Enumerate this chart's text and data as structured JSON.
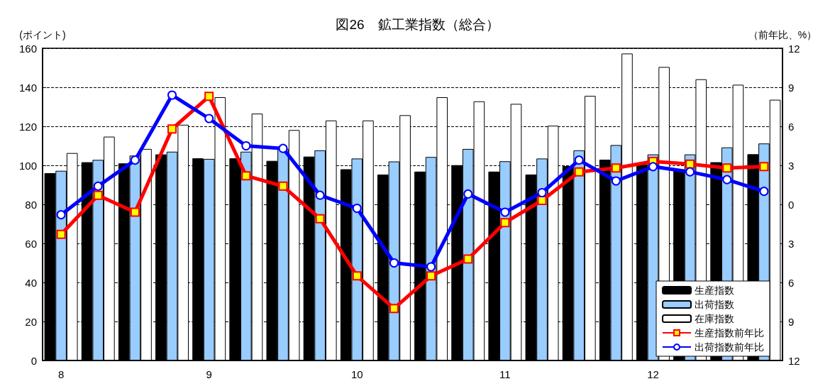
{
  "chart_data": {
    "type": "bar",
    "title": "図26　鉱工業指数（総合）",
    "ylabel": "(ポイント)",
    "y2label": "（前年比、%）",
    "categories": [
      "8",
      null,
      null,
      null,
      "9",
      null,
      null,
      null,
      "10",
      null,
      null,
      null,
      "11",
      null,
      null,
      null,
      "12",
      null,
      null,
      null
    ],
    "series": [
      {
        "name": "生産指数",
        "color": "#000000",
        "values": [
          96,
          101.6,
          101,
          105.6,
          103.6,
          103.6,
          102.3,
          104.5,
          98,
          95.3,
          96.8,
          100.1,
          96.8,
          95.3,
          99.6,
          102.9,
          100.5,
          97.9,
          101.6,
          105.7
        ]
      },
      {
        "name": "出荷指数",
        "color": "#99ccff",
        "values": [
          97.2,
          102.8,
          105,
          107,
          103.3,
          107,
          108.5,
          107.7,
          103.5,
          102,
          104.3,
          108.4,
          102.1,
          103.5,
          107.7,
          110.4,
          105.6,
          105.6,
          109.2,
          111.2
        ]
      },
      {
        "name": "在庫指数",
        "color": "#ffffff",
        "values": [
          106.3,
          114.7,
          108.4,
          120.8,
          134.9,
          126.5,
          118.1,
          123,
          123,
          125.7,
          134.9,
          132.8,
          131.5,
          120.3,
          135.6,
          157.3,
          150.4,
          144.1,
          141.3,
          133.6
        ]
      },
      {
        "name": "生産指数前年比",
        "type": "line",
        "axis": "y2",
        "color": "#ff0000",
        "marker": "square",
        "values": [
          -2.3,
          0.7,
          -0.6,
          5.8,
          8.3,
          2.2,
          1.4,
          -1.1,
          -5.5,
          -8,
          -5.5,
          -4.2,
          -1.4,
          0.3,
          2.5,
          2.8,
          3.3,
          3.1,
          2.8,
          2.9
        ]
      },
      {
        "name": "出荷指数前年比",
        "type": "line",
        "axis": "y2",
        "color": "#0000ff",
        "marker": "circle",
        "values": [
          -0.8,
          1.4,
          3.4,
          8.4,
          6.6,
          4.5,
          4.3,
          0.7,
          -0.3,
          -4.5,
          -4.8,
          0.8,
          -0.6,
          0.9,
          3.4,
          1.8,
          2.9,
          2.5,
          1.9,
          1
        ]
      }
    ],
    "ylim": [
      0,
      160
    ],
    "yticks": [
      0,
      20,
      40,
      60,
      80,
      100,
      120,
      140,
      160
    ],
    "y2lim": [
      -12,
      12
    ],
    "y2ticks": [
      {
        "value": -12,
        "label": "12"
      },
      {
        "value": -9,
        "label": "9"
      },
      {
        "value": -6,
        "label": "6"
      },
      {
        "value": -3,
        "label": "3"
      },
      0,
      3,
      6,
      9,
      12
    ],
    "grid": "y",
    "legend": "bottom right"
  }
}
